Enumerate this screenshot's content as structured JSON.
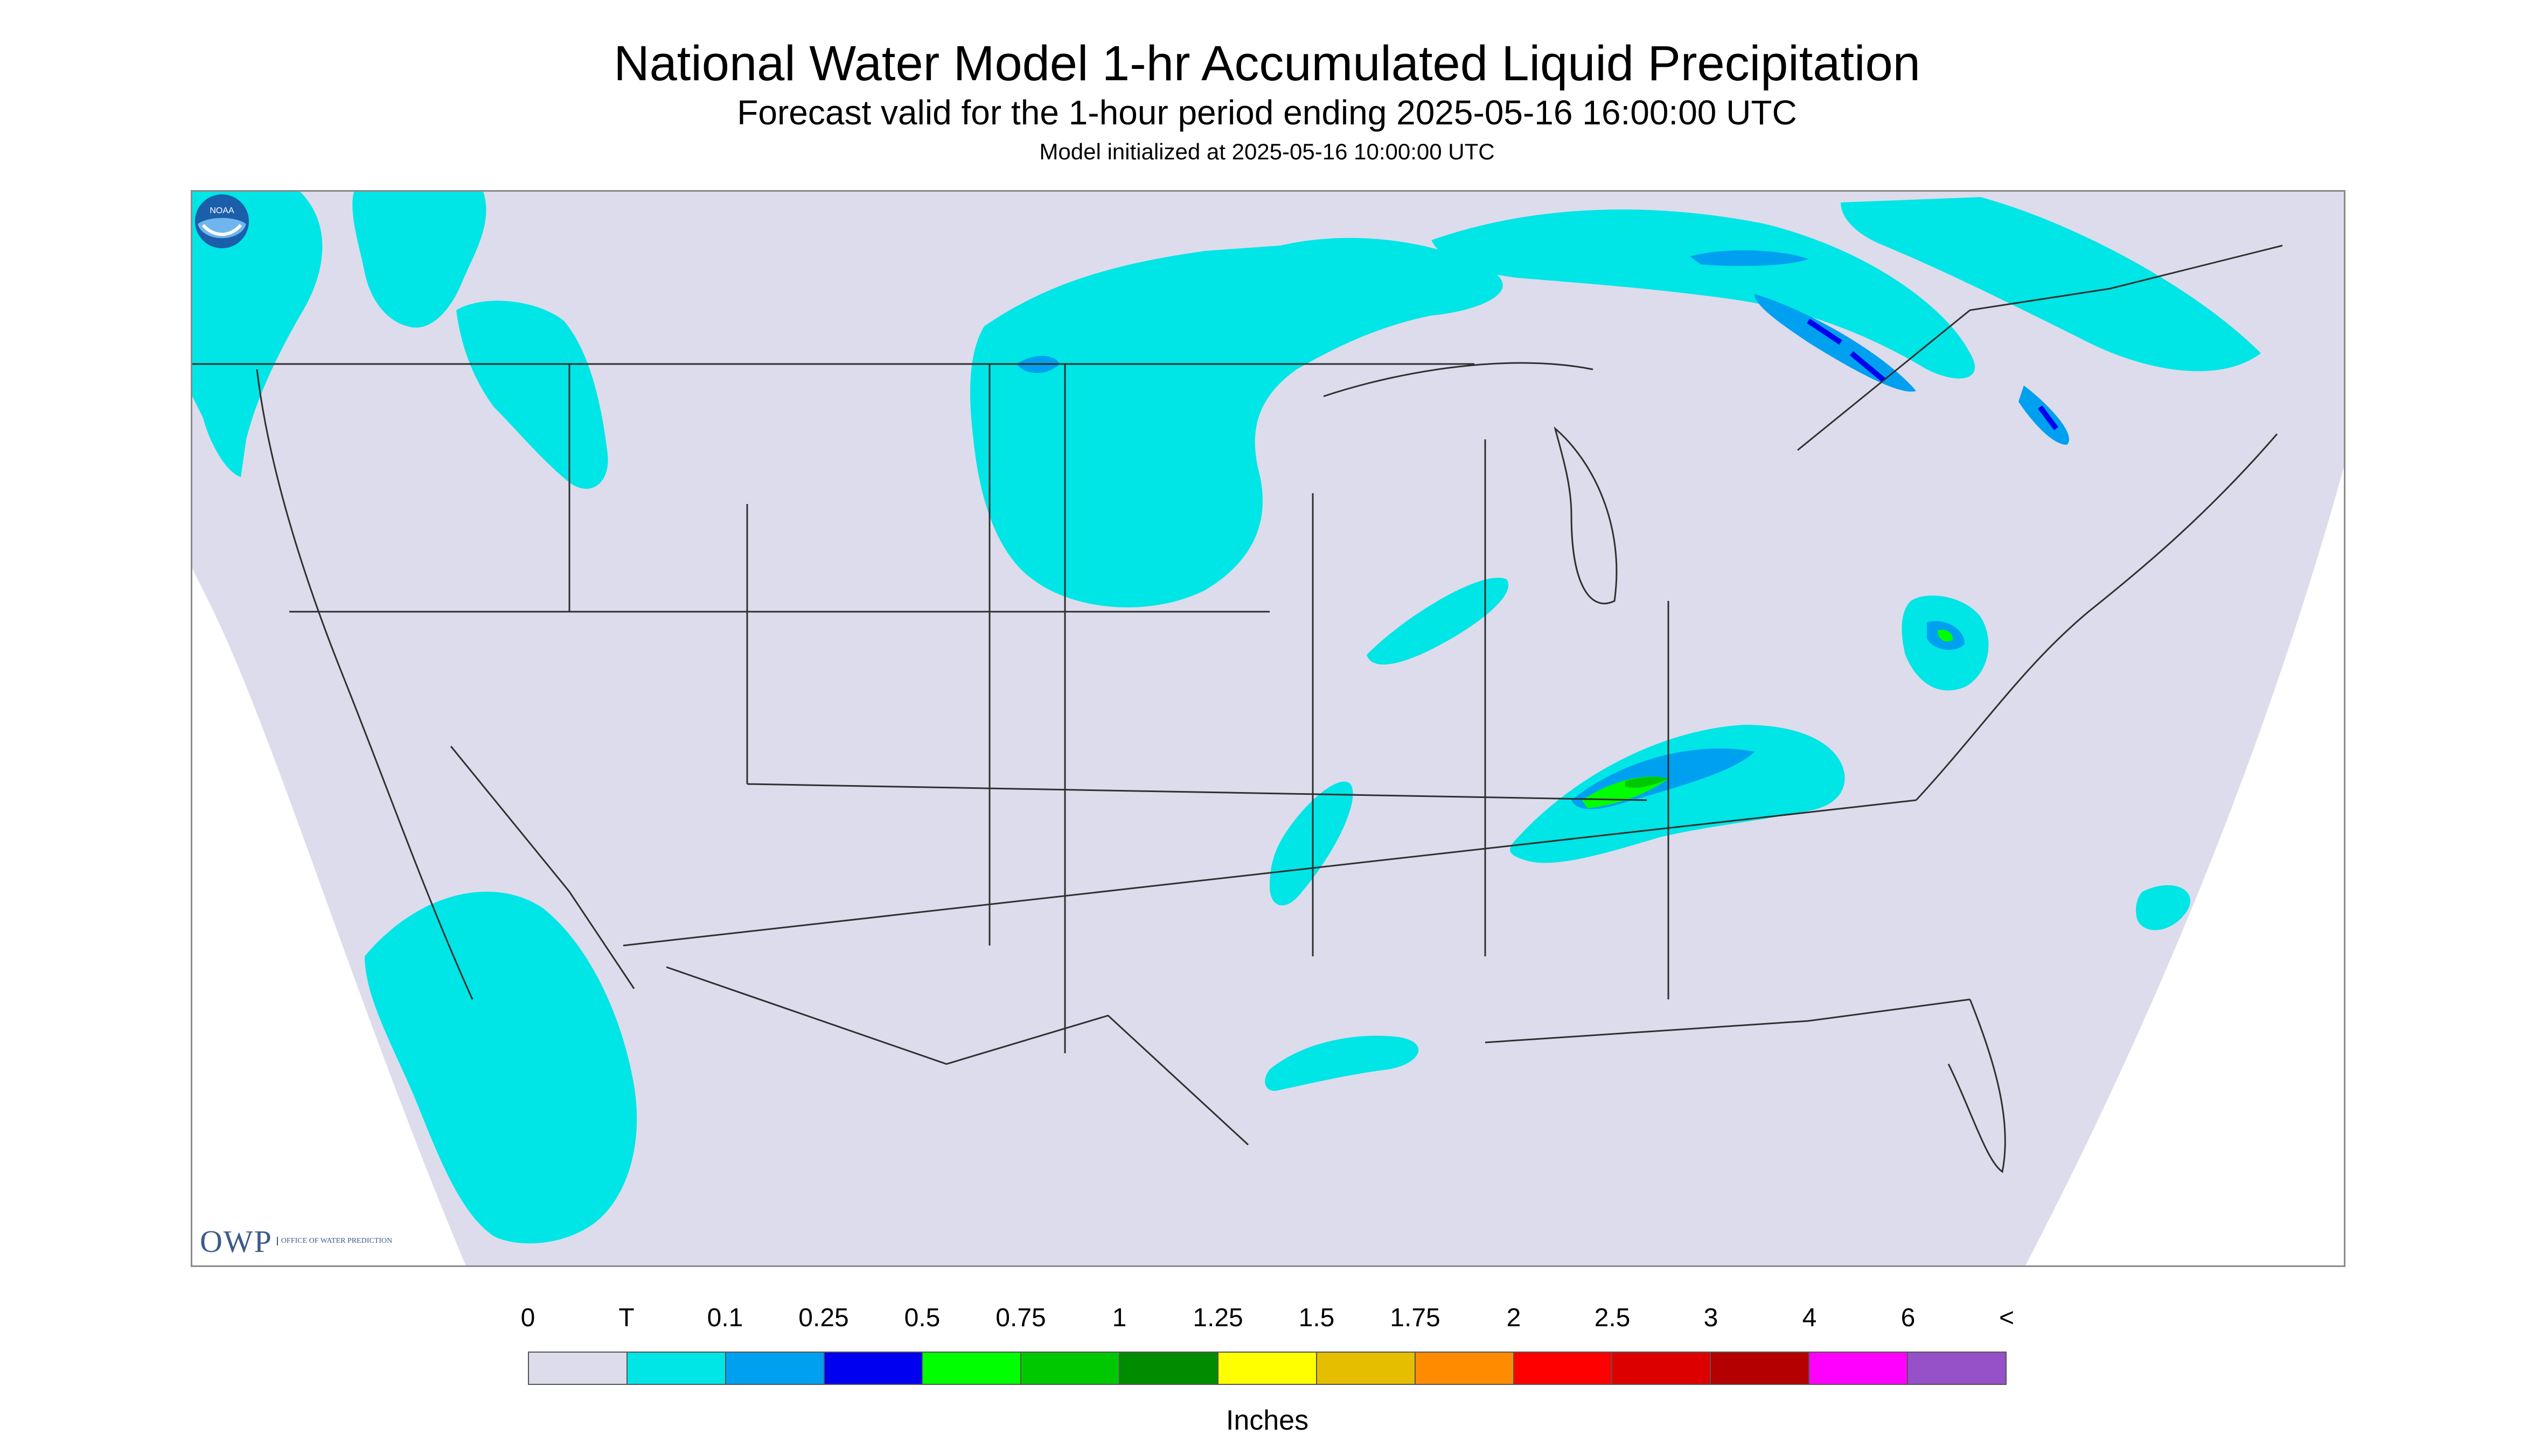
{
  "header": {
    "title": "National Water Model 1-hr Accumulated Liquid Precipitation",
    "subtitle": "Forecast valid for the 1-hour period ending 2025-05-16 16:00:00 UTC",
    "init": "Model initialized at 2025-05-16 10:00:00 UTC"
  },
  "map": {
    "region": "CONUS",
    "background_color": "#dcdcec",
    "boundary_color": "#303030"
  },
  "logos": {
    "owp_main": "OWP",
    "owp_sub": "Office of Water Prediction",
    "noaa": "NOAA"
  },
  "legend": {
    "labels": [
      "0",
      "T",
      "0.1",
      "0.25",
      "0.5",
      "0.75",
      "1",
      "1.25",
      "1.5",
      "1.75",
      "2",
      "2.5",
      "3",
      "4",
      "6",
      "<"
    ],
    "colors": [
      "#dcdcec",
      "#00e5e5",
      "#00a0f0",
      "#0000f0",
      "#00ff00",
      "#00c800",
      "#008c00",
      "#ffff00",
      "#e6be00",
      "#ff8c00",
      "#ff0000",
      "#dc0000",
      "#b40000",
      "#ff00ff",
      "#9650c8"
    ],
    "units": "Inches"
  }
}
